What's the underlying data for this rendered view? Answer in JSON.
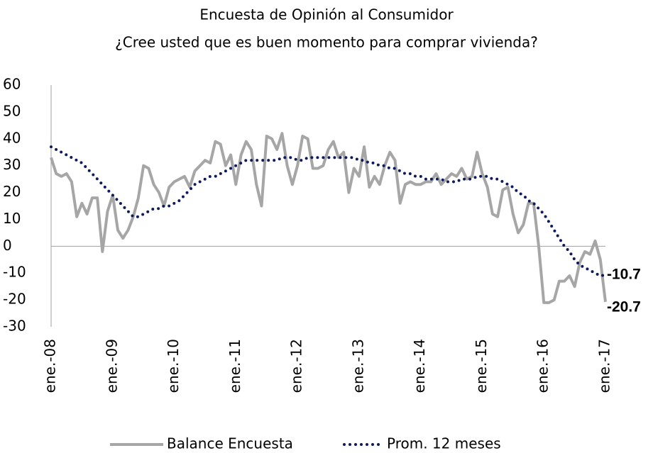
{
  "chart_data": {
    "type": "line",
    "title": "Encuesta de Opinión al Consumidor",
    "subtitle": "¿Cree usted que es buen momento para comprar vivienda?",
    "categories": [
      "ene.-08",
      null,
      null,
      null,
      null,
      null,
      null,
      null,
      null,
      null,
      null,
      null,
      "ene.-09",
      null,
      null,
      null,
      null,
      null,
      null,
      null,
      null,
      null,
      null,
      null,
      "ene.-10",
      null,
      null,
      null,
      null,
      null,
      null,
      null,
      null,
      null,
      null,
      null,
      "ene.-11",
      null,
      null,
      null,
      null,
      null,
      null,
      null,
      null,
      null,
      null,
      null,
      "ene.-12",
      null,
      null,
      null,
      null,
      null,
      null,
      null,
      null,
      null,
      null,
      null,
      "ene.-13",
      null,
      null,
      null,
      null,
      null,
      null,
      null,
      null,
      null,
      null,
      null,
      "ene.-14",
      null,
      null,
      null,
      null,
      null,
      null,
      null,
      null,
      null,
      null,
      null,
      "ene.-15",
      null,
      null,
      null,
      null,
      null,
      null,
      null,
      null,
      null,
      null,
      null,
      "ene.-16",
      null,
      null,
      null,
      null,
      null,
      null,
      null,
      null,
      null,
      null,
      null,
      "ene.-17"
    ],
    "series": [
      {
        "name": "Balance Encuesta",
        "color": "#a6a6a6",
        "style": "solid",
        "values": [
          33,
          27,
          26,
          27,
          24,
          11,
          16,
          12,
          18,
          18,
          -2,
          13,
          19,
          6,
          3,
          6,
          11,
          18,
          30,
          29,
          23,
          20,
          15,
          22,
          24,
          25,
          26,
          22,
          28,
          30,
          32,
          31,
          39,
          38,
          30,
          34,
          23,
          34,
          39,
          36,
          23,
          15,
          41,
          40,
          36,
          42,
          30,
          23,
          30,
          41,
          40,
          29,
          29,
          30,
          36,
          39,
          33,
          35,
          20,
          29,
          26,
          37,
          22,
          26,
          23,
          30,
          35,
          32,
          16,
          23,
          24,
          23,
          23,
          24,
          24,
          27,
          23,
          25,
          27,
          26,
          29,
          25,
          26,
          35,
          27,
          22,
          12,
          11,
          21,
          22,
          12,
          5,
          8,
          16,
          16,
          0,
          -21,
          -21,
          -20,
          -13,
          -13,
          -11,
          -15,
          -6,
          -2,
          -3,
          2,
          -5,
          -20.7
        ]
      },
      {
        "name": "Prom. 12 meses",
        "color": "#0d1a5c",
        "style": "dotted",
        "values": [
          37,
          36,
          35,
          34,
          33,
          32,
          31,
          29,
          27,
          25,
          23,
          21,
          19,
          17,
          15,
          13,
          11,
          11,
          12,
          13,
          14,
          14,
          15,
          15,
          16,
          17,
          19,
          21,
          23,
          24,
          25,
          26,
          26,
          27,
          28,
          29,
          30,
          31,
          32,
          32,
          32,
          32,
          32,
          32,
          32,
          33,
          33,
          33,
          32,
          32,
          33,
          33,
          33,
          33,
          33,
          33,
          33,
          33,
          33,
          33,
          32,
          32,
          31,
          31,
          30,
          30,
          29,
          29,
          28,
          27,
          27,
          26,
          26,
          25,
          25,
          25,
          25,
          24,
          24,
          24,
          25,
          25,
          25,
          26,
          26,
          26,
          25,
          25,
          24,
          23,
          22,
          20,
          19,
          17,
          16,
          14,
          12,
          9,
          6,
          3,
          0,
          -2,
          -5,
          -7,
          -8,
          -9,
          -10,
          -11,
          -10.7
        ]
      }
    ],
    "ylim": [
      -30,
      60
    ],
    "yticks": [
      -30,
      -20,
      -10,
      0,
      10,
      20,
      30,
      40,
      50,
      60
    ],
    "grid": false,
    "legend": "bottom"
  }
}
